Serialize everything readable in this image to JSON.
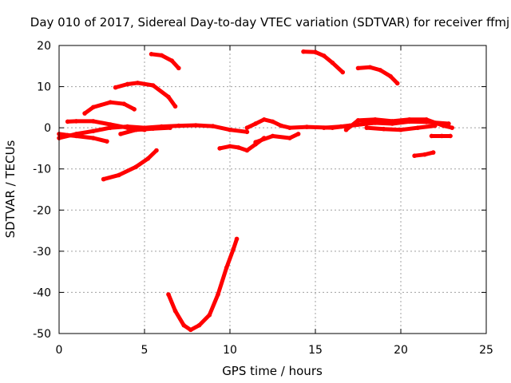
{
  "chart_data": {
    "type": "scatter",
    "title": "Day 010 of 2017, Sidereal Day-to-day VTEC variation (SDTVAR) for receiver ffmj",
    "xlabel": "GPS time / hours",
    "ylabel": "SDTVAR / TECUs",
    "xlim": [
      0,
      25
    ],
    "ylim": [
      -50,
      20
    ],
    "x_ticks": [
      "0",
      "5",
      "10",
      "15",
      "20",
      "25"
    ],
    "y_ticks": [
      "20",
      "10",
      "0",
      "-10",
      "-20",
      "-30",
      "-40",
      "-50"
    ],
    "x_tick_values": [
      0,
      5,
      10,
      15,
      20,
      25
    ],
    "y_tick_values": [
      20,
      10,
      0,
      -10,
      -20,
      -30,
      -40,
      -50
    ],
    "grid": true,
    "marker_color": "#ff0000",
    "series": [
      {
        "x": [
          0.0,
          1.0,
          2.0,
          3.0,
          4.0,
          5.0,
          6.0,
          7.0,
          8.0,
          9.0,
          10.0,
          11.0
        ],
        "y": [
          -2.5,
          -1.5,
          -0.8,
          0.0,
          0.3,
          0.0,
          0.3,
          0.5,
          0.6,
          0.4,
          -0.5,
          -1.0
        ]
      },
      {
        "x": [
          0.0,
          0.5,
          1.0,
          2.0,
          2.8
        ],
        "y": [
          -1.5,
          -1.8,
          -2.0,
          -2.5,
          -3.3
        ]
      },
      {
        "x": [
          0.5,
          1.0,
          2.0,
          3.0,
          4.0,
          5.0
        ],
        "y": [
          1.5,
          1.6,
          1.6,
          0.8,
          0.0,
          -0.5
        ]
      },
      {
        "x": [
          1.5,
          2.0,
          3.0,
          3.8,
          4.4
        ],
        "y": [
          3.5,
          5.0,
          6.2,
          5.8,
          4.5
        ]
      },
      {
        "x": [
          3.3,
          4.0,
          4.6,
          5.5,
          6.4,
          6.8
        ],
        "y": [
          9.8,
          10.6,
          10.9,
          10.3,
          7.5,
          5.2
        ]
      },
      {
        "x": [
          5.4,
          6.0,
          6.6,
          7.0
        ],
        "y": [
          17.9,
          17.6,
          16.3,
          14.5
        ]
      },
      {
        "x": [
          2.6,
          3.5,
          4.5,
          5.2,
          5.7
        ],
        "y": [
          -12.5,
          -11.5,
          -9.5,
          -7.5,
          -5.5
        ]
      },
      {
        "x": [
          3.6,
          4.5,
          5.5,
          6.5
        ],
        "y": [
          -1.5,
          -0.5,
          -0.2,
          0.0
        ]
      },
      {
        "x": [
          6.4,
          6.8,
          7.3,
          7.7,
          8.2,
          8.8,
          9.3,
          9.8,
          10.2,
          10.4
        ],
        "y": [
          -40.5,
          -44.5,
          -48.0,
          -49.1,
          -48.0,
          -45.5,
          -40.5,
          -34.0,
          -29.5,
          -27.0
        ]
      },
      {
        "x": [
          9.4,
          10.0,
          10.5,
          11.0,
          11.5,
          12.0
        ],
        "y": [
          -5.0,
          -4.5,
          -4.8,
          -5.5,
          -4.0,
          -2.5
        ]
      },
      {
        "x": [
          11.0,
          11.5,
          12.0,
          12.5,
          13.0,
          13.5,
          14.5,
          16.0,
          17.0,
          18.0
        ],
        "y": [
          0.0,
          1.0,
          2.0,
          1.5,
          0.5,
          0.0,
          0.2,
          0.0,
          0.5,
          1.0
        ]
      },
      {
        "x": [
          11.5,
          12.5,
          13.5,
          14.0
        ],
        "y": [
          -3.5,
          -2.0,
          -2.5,
          -1.5
        ]
      },
      {
        "x": [
          14.3,
          15.0,
          15.5,
          16.0,
          16.6
        ],
        "y": [
          18.5,
          18.4,
          17.5,
          15.8,
          13.5
        ]
      },
      {
        "x": [
          17.5,
          18.2,
          18.8,
          19.4,
          19.8
        ],
        "y": [
          14.5,
          14.7,
          14.0,
          12.5,
          10.8
        ]
      },
      {
        "x": [
          15.5,
          16.5,
          17.5,
          18.5,
          19.5,
          20.5,
          21.5,
          22.8
        ],
        "y": [
          0.0,
          0.3,
          0.8,
          1.2,
          1.0,
          1.5,
          1.4,
          1.0
        ]
      },
      {
        "x": [
          16.8,
          17.5,
          18.5,
          19.5,
          20.5,
          21.5,
          22.5,
          23.0
        ],
        "y": [
          -0.5,
          1.8,
          2.0,
          1.6,
          2.0,
          2.0,
          0.5,
          0.0
        ]
      },
      {
        "x": [
          18.0,
          19.0,
          20.0,
          21.0,
          22.0
        ],
        "y": [
          0.0,
          -0.3,
          -0.5,
          0.0,
          0.5
        ]
      },
      {
        "x": [
          21.8,
          22.4,
          22.9
        ],
        "y": [
          -2.0,
          -2.0,
          -2.0
        ]
      },
      {
        "x": [
          20.8,
          21.4,
          21.9
        ],
        "y": [
          -6.8,
          -6.5,
          -6.0
        ]
      }
    ]
  }
}
